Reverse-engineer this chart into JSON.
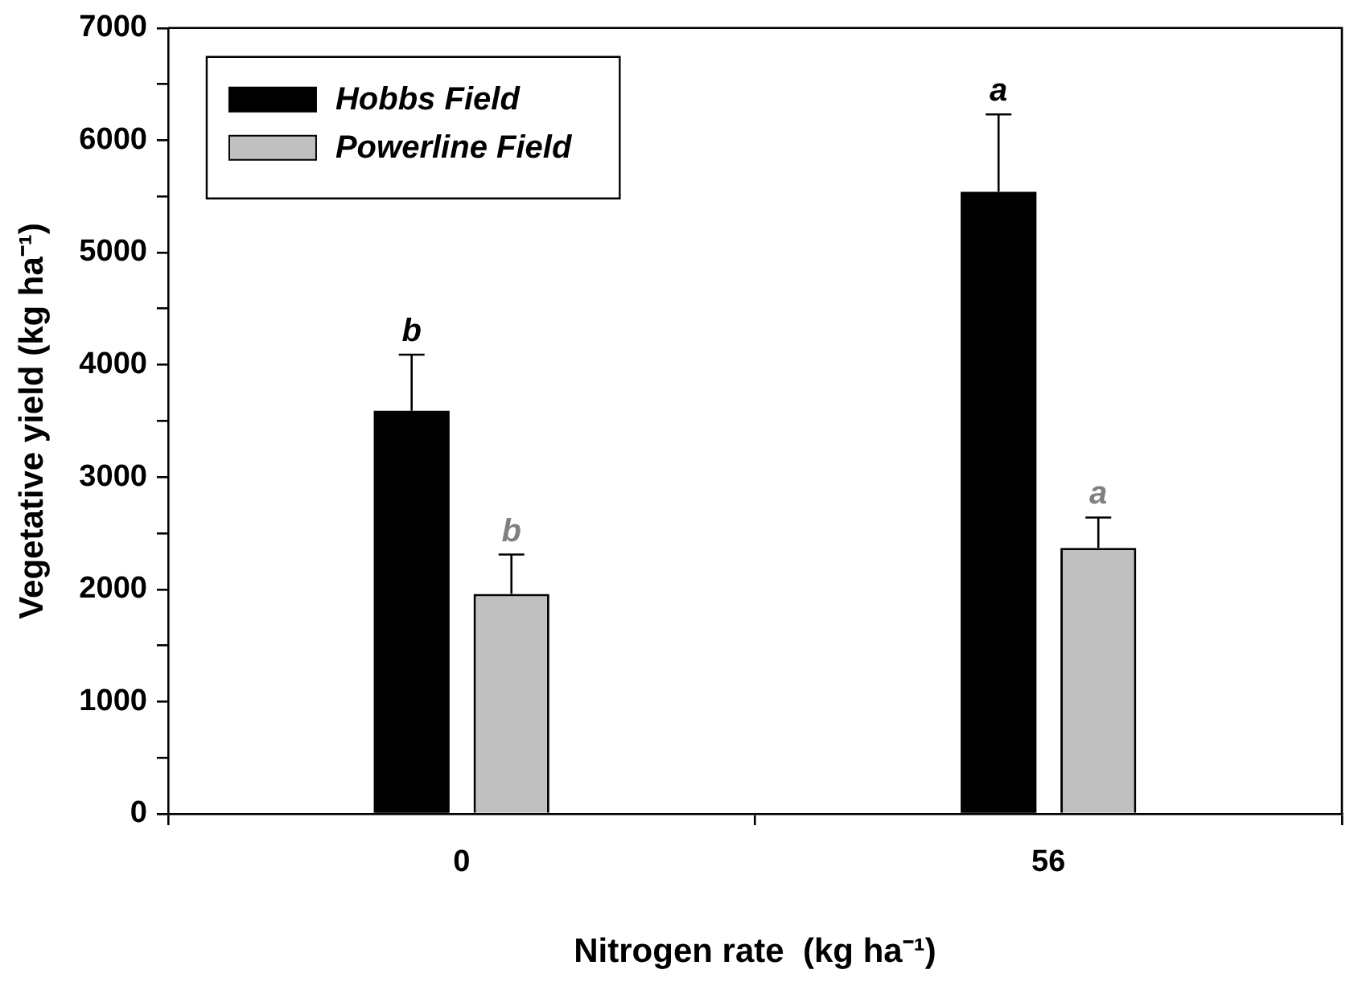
{
  "chart_data": {
    "type": "bar",
    "xlabel": "Nitrogen rate  (kg ha⁻¹)",
    "ylabel": "Vegetative yield (kg ha⁻¹)",
    "categories": [
      "0",
      "56"
    ],
    "series": [
      {
        "name": "Hobbs Field",
        "color": "#000000",
        "values": [
          3590,
          5540
        ],
        "errors": [
          [
            3590,
            4090
          ],
          [
            5540,
            6230
          ]
        ],
        "value_labels": [
          "b",
          "a"
        ]
      },
      {
        "name": "Powerline Field",
        "color": "#c0c0c0",
        "values": [
          1960,
          2370
        ],
        "errors": [
          [
            1960,
            2310
          ],
          [
            2370,
            2640
          ]
        ],
        "value_labels": [
          "b",
          "a"
        ]
      }
    ],
    "ylim": [
      0,
      7000
    ],
    "yticks": [
      0,
      {
        "value": 500,
        "label": null
      },
      1000,
      {
        "value": 1500,
        "label": null
      },
      2000,
      {
        "value": 2500,
        "label": null
      },
      3000,
      {
        "value": 3500,
        "label": null
      },
      4000,
      {
        "value": 4500,
        "label": null
      },
      5000,
      {
        "value": 5500,
        "label": null
      },
      6000,
      {
        "value": 6500,
        "label": null
      },
      7000
    ],
    "legend": "top left"
  }
}
